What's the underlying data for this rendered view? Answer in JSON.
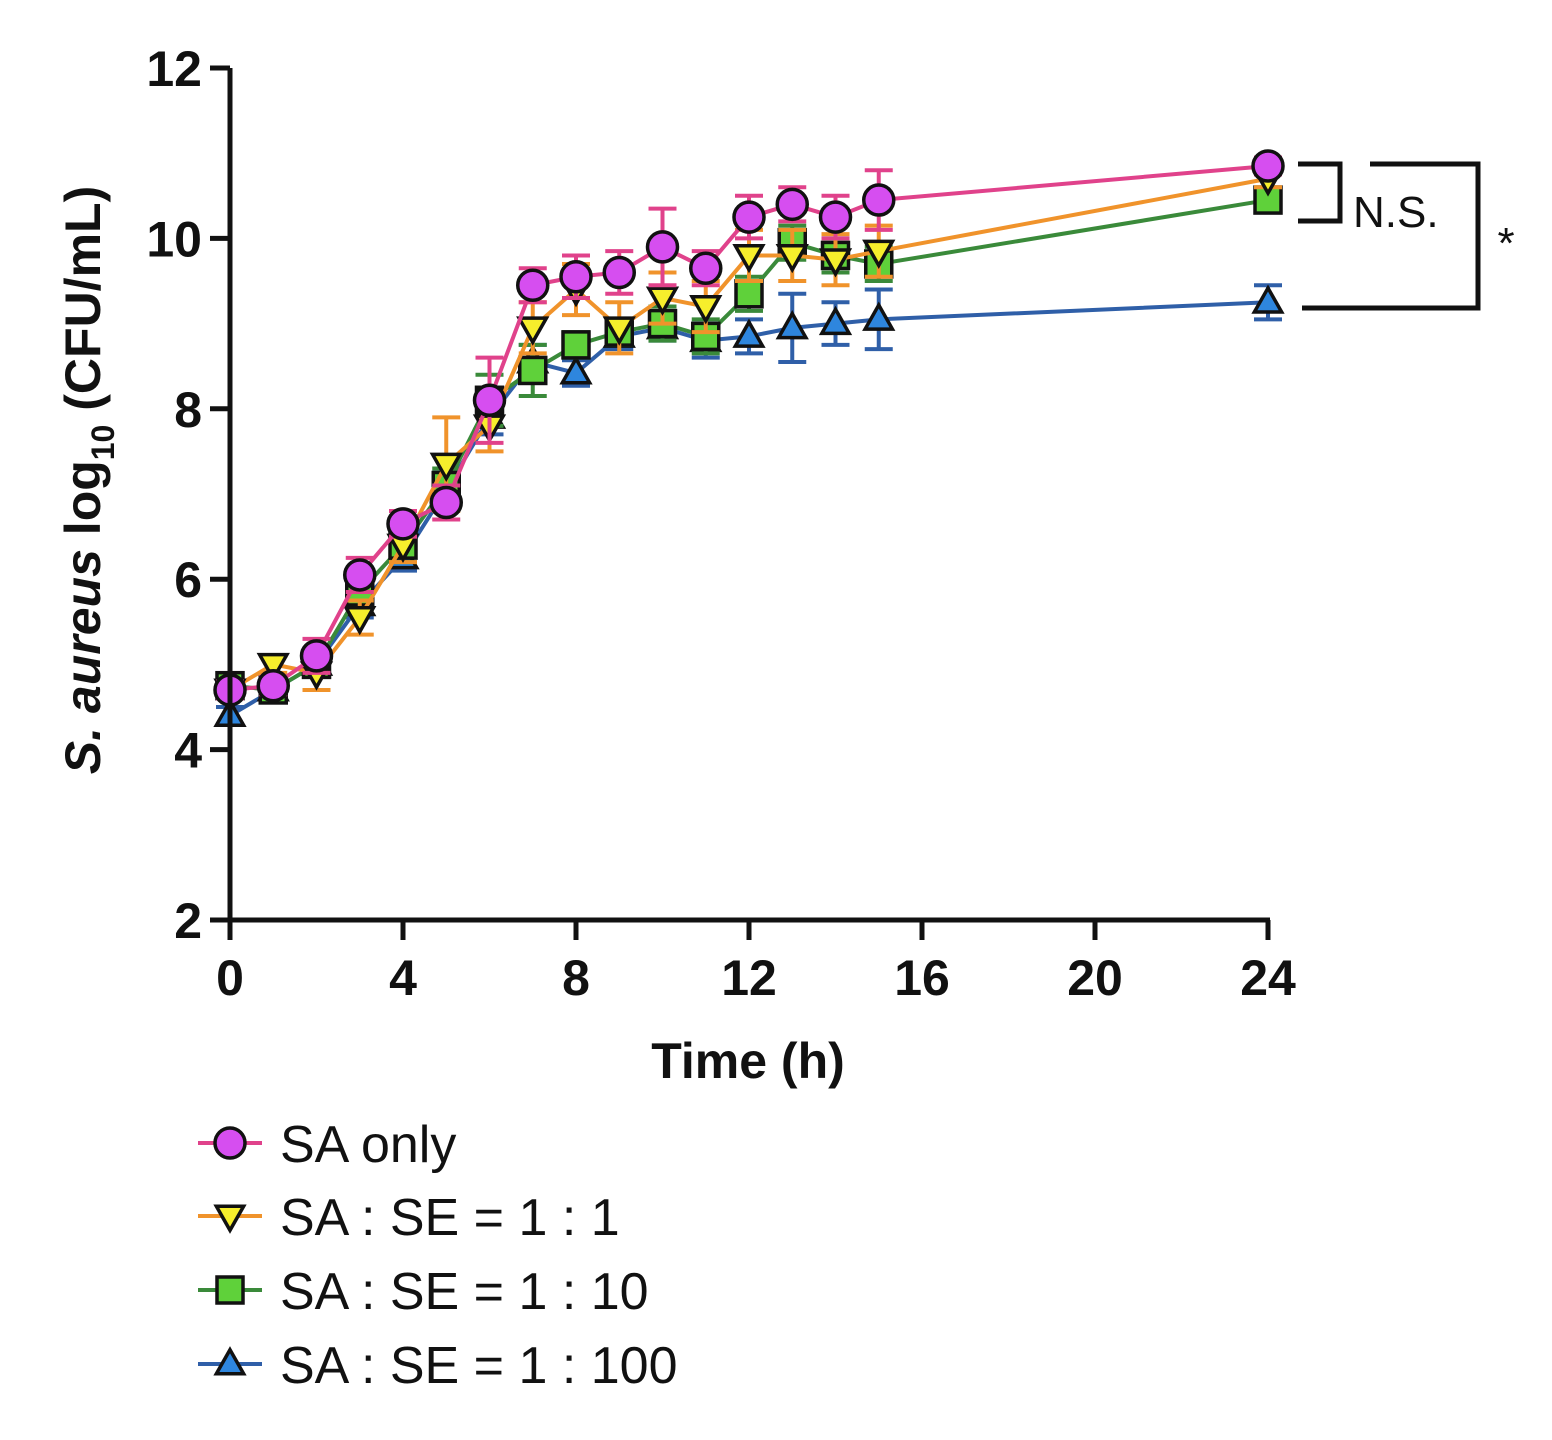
{
  "chart_data": {
    "type": "line",
    "xlabel": "Time (h)",
    "ylabel_italic": "S. aureus",
    "ylabel_log": "log",
    "ylabel_sub": "10",
    "ylabel_unit": "(CFU/mL)",
    "xlim": [
      0,
      24
    ],
    "ylim": [
      2,
      12
    ],
    "xticks": [
      0,
      4,
      8,
      12,
      16,
      20,
      24
    ],
    "yticks": [
      2,
      4,
      6,
      8,
      10,
      12
    ],
    "x": [
      0,
      1,
      2,
      3,
      4,
      5,
      6,
      7,
      8,
      9,
      10,
      11,
      12,
      13,
      14,
      15,
      24
    ],
    "series": [
      {
        "name": "SA : SE = 1 : 100",
        "line_color": "#2f5fa8",
        "fill_color": "#2e86de",
        "marker": "triangle-up",
        "values": [
          4.4,
          4.7,
          5.0,
          5.7,
          6.25,
          7.05,
          7.9,
          8.55,
          8.42,
          8.85,
          8.95,
          8.8,
          8.85,
          8.95,
          9.0,
          9.05,
          9.25
        ],
        "errors": [
          0.1,
          0.1,
          0.1,
          0.15,
          0.15,
          0.2,
          0.2,
          0.2,
          0.15,
          0.15,
          0.15,
          0.2,
          0.2,
          0.4,
          0.25,
          0.35,
          0.2
        ]
      },
      {
        "name": "SA : SE = 1 : 10",
        "line_color": "#3a8a3a",
        "fill_color": "#5fd13a",
        "marker": "square",
        "values": [
          4.75,
          4.7,
          5.0,
          5.85,
          6.4,
          7.1,
          8.1,
          8.45,
          8.75,
          8.9,
          9.0,
          8.85,
          9.35,
          9.95,
          9.8,
          9.7,
          10.45
        ],
        "errors": [
          0.1,
          0.1,
          0.1,
          0.2,
          0.2,
          0.2,
          0.3,
          0.3,
          0.15,
          0.15,
          0.2,
          0.2,
          0.2,
          0.2,
          0.2,
          0.2,
          0.1
        ]
      },
      {
        "name": "SA : SE = 1 : 1",
        "line_color": "#f0932b",
        "fill_color": "#f6ee2c",
        "marker": "triangle-down",
        "values": [
          4.7,
          5.0,
          4.9,
          5.55,
          6.4,
          7.35,
          7.8,
          8.95,
          9.4,
          8.95,
          9.3,
          9.2,
          9.8,
          9.8,
          9.75,
          9.85,
          10.7
        ],
        "errors": [
          0.1,
          0.1,
          0.2,
          0.2,
          0.2,
          0.55,
          0.3,
          0.3,
          0.3,
          0.3,
          0.3,
          0.3,
          0.3,
          0.3,
          0.3,
          0.3,
          0.1
        ]
      },
      {
        "name": "SA only",
        "line_color": "#e0428b",
        "fill_color": "#d64ef0",
        "marker": "circle",
        "values": [
          4.7,
          4.75,
          5.1,
          6.05,
          6.65,
          6.9,
          8.1,
          9.45,
          9.55,
          9.6,
          9.9,
          9.65,
          10.25,
          10.4,
          10.25,
          10.45,
          10.85
        ],
        "errors": [
          0.1,
          0.1,
          0.2,
          0.2,
          0.15,
          0.2,
          0.5,
          0.2,
          0.25,
          0.25,
          0.45,
          0.2,
          0.25,
          0.2,
          0.25,
          0.35,
          0.1
        ]
      }
    ],
    "annotations": {
      "ns": "N.S.",
      "sig": "*"
    }
  }
}
